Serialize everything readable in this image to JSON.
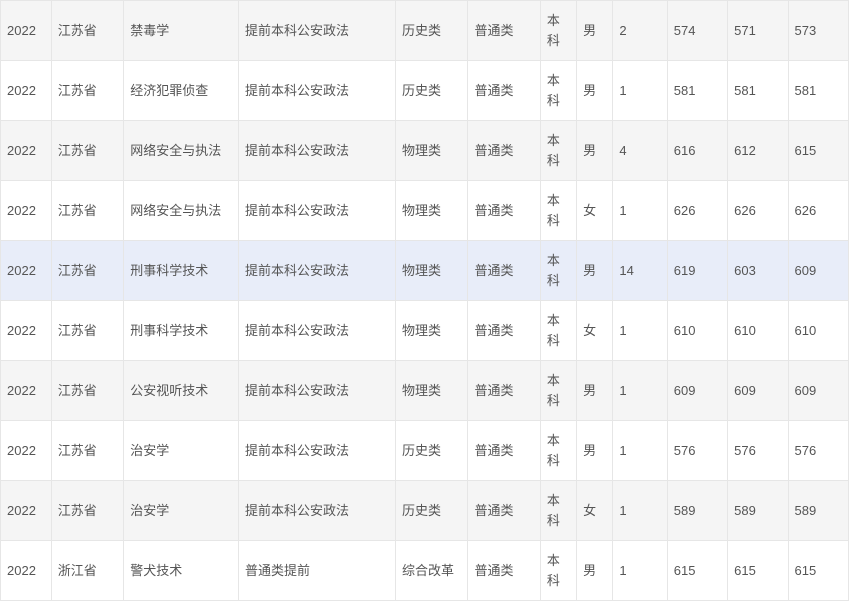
{
  "table": {
    "column_classes": [
      "c-year",
      "c-prov",
      "c-major",
      "c-batch",
      "c-sub",
      "c-cat",
      "c-lvl",
      "c-sex",
      "c-cnt",
      "c-s1",
      "c-s2",
      "c-s3"
    ],
    "rows": [
      {
        "style": "odd",
        "cells": [
          "2022",
          "江苏省",
          "禁毒学",
          "提前本科公安政法",
          "历史类",
          "普通类",
          "本科",
          "男",
          "2",
          "574",
          "571",
          "573"
        ]
      },
      {
        "style": "even",
        "cells": [
          "2022",
          "江苏省",
          "经济犯罪侦查",
          "提前本科公安政法",
          "历史类",
          "普通类",
          "本科",
          "男",
          "1",
          "581",
          "581",
          "581"
        ]
      },
      {
        "style": "odd",
        "cells": [
          "2022",
          "江苏省",
          "网络安全与执法",
          "提前本科公安政法",
          "物理类",
          "普通类",
          "本科",
          "男",
          "4",
          "616",
          "612",
          "615"
        ]
      },
      {
        "style": "even",
        "cells": [
          "2022",
          "江苏省",
          "网络安全与执法",
          "提前本科公安政法",
          "物理类",
          "普通类",
          "本科",
          "女",
          "1",
          "626",
          "626",
          "626"
        ]
      },
      {
        "style": "highlight",
        "cells": [
          "2022",
          "江苏省",
          "刑事科学技术",
          "提前本科公安政法",
          "物理类",
          "普通类",
          "本科",
          "男",
          "14",
          "619",
          "603",
          "609"
        ]
      },
      {
        "style": "even",
        "cells": [
          "2022",
          "江苏省",
          "刑事科学技术",
          "提前本科公安政法",
          "物理类",
          "普通类",
          "本科",
          "女",
          "1",
          "610",
          "610",
          "610"
        ]
      },
      {
        "style": "odd",
        "cells": [
          "2022",
          "江苏省",
          "公安视听技术",
          "提前本科公安政法",
          "物理类",
          "普通类",
          "本科",
          "男",
          "1",
          "609",
          "609",
          "609"
        ]
      },
      {
        "style": "even",
        "cells": [
          "2022",
          "江苏省",
          "治安学",
          "提前本科公安政法",
          "历史类",
          "普通类",
          "本科",
          "男",
          "1",
          "576",
          "576",
          "576"
        ]
      },
      {
        "style": "odd",
        "cells": [
          "2022",
          "江苏省",
          "治安学",
          "提前本科公安政法",
          "历史类",
          "普通类",
          "本科",
          "女",
          "1",
          "589",
          "589",
          "589"
        ]
      },
      {
        "style": "even",
        "cells": [
          "2022",
          "浙江省",
          "警犬技术",
          "普通类提前",
          "综合改革",
          "普通类",
          "本科",
          "男",
          "1",
          "615",
          "615",
          "615"
        ]
      }
    ]
  }
}
